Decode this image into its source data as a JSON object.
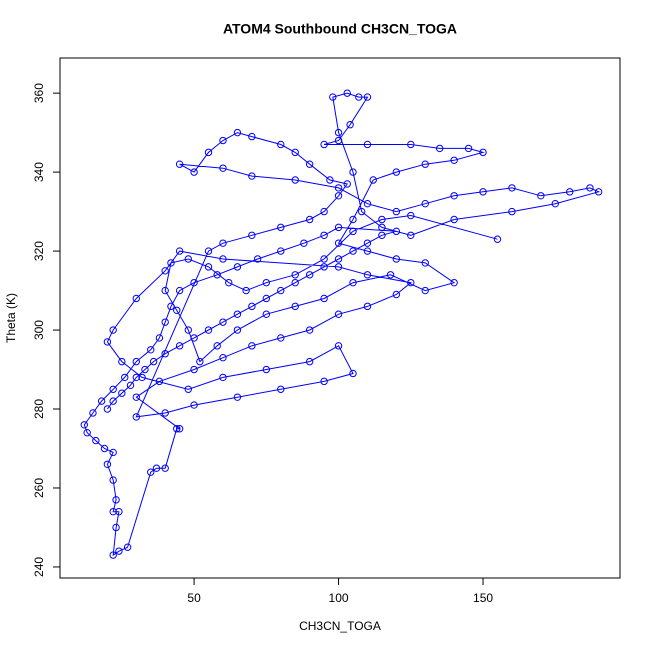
{
  "chart_data": {
    "type": "scatter-line",
    "title": "ATOM4 Southbound CH3CN_TOGA",
    "x_label": "CH3CN_TOGA",
    "y_label": "Theta (K)",
    "color": "#0000ff",
    "x": [
      20,
      22,
      25,
      28,
      30,
      33,
      36,
      40,
      45,
      50,
      55,
      60,
      65,
      70,
      75,
      80,
      85,
      90,
      95,
      100,
      105,
      110,
      115,
      120,
      100,
      95,
      88,
      80,
      72,
      65,
      58,
      50,
      45,
      42,
      40,
      38,
      35,
      30,
      26,
      22,
      18,
      15,
      12,
      13,
      16,
      19,
      22,
      20,
      22,
      23,
      22,
      24,
      23,
      22,
      24,
      27,
      35,
      37,
      40,
      44,
      45,
      30,
      38,
      50,
      60,
      70,
      80,
      90,
      100,
      110,
      120,
      125,
      110,
      100,
      60,
      45,
      40,
      30,
      22,
      20,
      25,
      32,
      48,
      60,
      75,
      90,
      100,
      105,
      95,
      80,
      65,
      50,
      40,
      30,
      55,
      60,
      70,
      80,
      90,
      95,
      100,
      103,
      97,
      90,
      85,
      80,
      70,
      65,
      60,
      55,
      50,
      45,
      60,
      70,
      85,
      100,
      110,
      120,
      130,
      140,
      150,
      160,
      170,
      180,
      187,
      190,
      175,
      160,
      140,
      125,
      115,
      108,
      105,
      100,
      98,
      103,
      107,
      110,
      104,
      100,
      95,
      110,
      125,
      135,
      145,
      150,
      140,
      130,
      120,
      112,
      105,
      100,
      110,
      120,
      130,
      140,
      130,
      118,
      105,
      95,
      85,
      75,
      65,
      58,
      52,
      48,
      44,
      40,
      42,
      48,
      55,
      62,
      68,
      75,
      85,
      95,
      105,
      115,
      125,
      155
    ],
    "values": [
      280,
      282,
      284,
      286,
      288,
      290,
      292,
      294,
      296,
      298,
      300,
      302,
      304,
      306,
      308,
      310,
      312,
      314,
      316,
      318,
      320,
      322,
      324,
      325,
      326,
      324,
      322,
      320,
      318,
      316,
      314,
      312,
      310,
      306,
      302,
      298,
      295,
      292,
      288,
      285,
      282,
      279,
      276,
      274,
      272,
      270,
      269,
      266,
      262,
      257,
      254,
      254,
      250,
      243,
      244,
      245,
      264,
      265,
      265,
      275,
      275,
      283,
      287,
      290,
      293,
      296,
      298,
      300,
      304,
      306,
      309,
      312,
      314,
      316,
      318,
      320,
      315,
      308,
      300,
      297,
      292,
      288,
      285,
      288,
      290,
      292,
      296,
      289,
      287,
      285,
      283,
      281,
      279,
      278,
      320,
      322,
      324,
      326,
      328,
      330,
      334,
      337,
      338,
      342,
      345,
      347,
      349,
      350,
      348,
      345,
      340,
      342,
      341,
      339,
      338,
      336,
      332,
      330,
      332,
      334,
      335,
      336,
      334,
      335,
      336,
      335,
      332,
      330,
      328,
      324,
      326,
      330,
      340,
      350,
      359,
      360,
      359,
      359,
      352,
      348,
      347,
      347,
      347,
      346,
      346,
      345,
      343,
      342,
      340,
      338,
      328,
      322,
      320,
      318,
      317,
      312,
      310,
      314,
      312,
      308,
      306,
      304,
      300,
      296,
      292,
      300,
      305,
      310,
      317,
      318,
      316,
      312,
      310,
      312,
      314,
      318,
      325,
      328,
      329,
      323
    ],
    "xlim": [
      3.6,
      197.4
    ],
    "xticks": [
      50,
      100,
      150
    ],
    "ylim": [
      237.2,
      368.9
    ],
    "yticks": [
      240,
      260,
      280,
      300,
      320,
      340,
      360
    ]
  }
}
